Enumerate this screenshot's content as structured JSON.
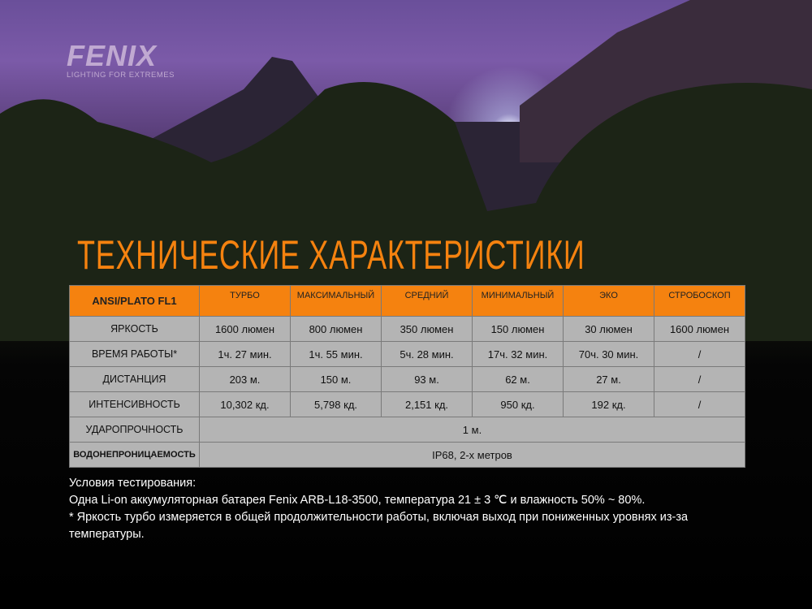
{
  "logo": {
    "name": "FENIX",
    "tagline": "LIGHTING FOR EXTREMES"
  },
  "title": "ТЕХНИЧЕСКИЕ ХАРАКТЕРИСТИКИ",
  "table": {
    "header": [
      "ANSI/PLATO FL1",
      "ТУРБО",
      "МАКСИМАЛЬНЫЙ",
      "СРЕДНИЙ",
      "МИНИМАЛЬНЫЙ",
      "ЭКО",
      "СТРОБОСКОП"
    ],
    "rows": [
      [
        "ЯРКОСТЬ",
        "1600 люмен",
        "800 люмен",
        "350 люмен",
        "150 люмен",
        "30 люмен",
        "1600 люмен"
      ],
      [
        "ВРЕМЯ РАБОТЫ*",
        "1ч. 27 мин.",
        "1ч. 55 мин.",
        "5ч. 28 мин.",
        "17ч. 32 мин.",
        "70ч. 30 мин.",
        "/"
      ],
      [
        "ДИСТАНЦИЯ",
        "203 м.",
        "150 м.",
        "93 м.",
        "62 м.",
        "27 м.",
        "/"
      ],
      [
        "ИНТЕНСИВНОСТЬ",
        "10,302 кд.",
        "5,798 кд.",
        "2,151 кд.",
        "950 кд.",
        "192 кд.",
        "/"
      ]
    ],
    "impact": {
      "label": "УДАРОПРОЧНОСТЬ",
      "value": "1 м."
    },
    "waterproof": {
      "label": "ВОДОНЕПРОНИЦАЕМОСТЬ",
      "value": "IP68, 2-х метров"
    }
  },
  "notes": [
    "Условия тестирования:",
    "Одна Li-on аккумуляторная батарея Fenix ARB-L18-3500, температура 21 ± 3 ℃  и влажность 50% ~ 80%.",
    "* Яркость турбо измеряется в общей продолжительности работы, включая выход при пониженных уровнях из-за температуры."
  ],
  "colors": {
    "accent": "#f5820f",
    "cell": "#b4b4b4"
  }
}
